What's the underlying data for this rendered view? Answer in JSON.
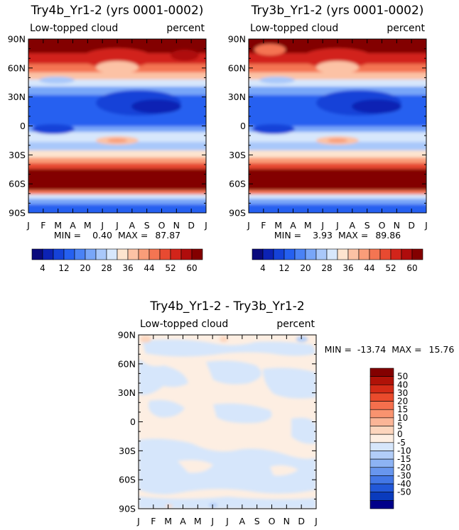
{
  "chart_data": [
    {
      "type": "heatmap",
      "title": "Try4b_Yr1-2 (yrs 0001-0002)",
      "left_label": "Low-topped cloud",
      "right_label": "percent",
      "x_ticks": [
        "J",
        "F",
        "M",
        "A",
        "M",
        "J",
        "J",
        "A",
        "S",
        "O",
        "N",
        "D",
        "J"
      ],
      "y_ticks": [
        "90N",
        "60N",
        "30N",
        "0",
        "30S",
        "60S",
        "90S"
      ],
      "stats": {
        "min_label": "MIN =",
        "min": "0.40",
        "max_label": "MAX =",
        "max": "87.87"
      },
      "colorbar": {
        "labels": [
          "4",
          "12",
          "20",
          "28",
          "36",
          "44",
          "52",
          "60"
        ],
        "colors": [
          "#0a0a7d",
          "#0c22b4",
          "#1542d8",
          "#2560f0",
          "#4a82f5",
          "#78a6f8",
          "#a9c8fa",
          "#d7e7fc",
          "#fde4cf",
          "#fcc2a5",
          "#f99d79",
          "#f47552",
          "#e84a31",
          "#d2241a",
          "#af0c0c",
          "#830000"
        ]
      }
    },
    {
      "type": "heatmap",
      "title": "Try3b_Yr1-2 (yrs 0001-0002)",
      "left_label": "Low-topped cloud",
      "right_label": "percent",
      "x_ticks": [
        "J",
        "F",
        "M",
        "A",
        "M",
        "J",
        "J",
        "A",
        "S",
        "O",
        "N",
        "D",
        "J"
      ],
      "y_ticks": [
        "90N",
        "60N",
        "30N",
        "0",
        "30S",
        "60S",
        "90S"
      ],
      "stats": {
        "min_label": "MIN =",
        "min": "3.93",
        "max_label": "MAX =",
        "max": "89.86"
      },
      "colorbar": {
        "labels": [
          "4",
          "12",
          "20",
          "28",
          "36",
          "44",
          "52",
          "60"
        ],
        "colors": [
          "#0a0a7d",
          "#0c22b4",
          "#1542d8",
          "#2560f0",
          "#4a82f5",
          "#78a6f8",
          "#a9c8fa",
          "#d7e7fc",
          "#fde4cf",
          "#fcc2a5",
          "#f99d79",
          "#f47552",
          "#e84a31",
          "#d2241a",
          "#af0c0c",
          "#830000"
        ]
      }
    },
    {
      "type": "heatmap",
      "title": "Try4b_Yr1-2 - Try3b_Yr1-2",
      "left_label": "Low-topped cloud",
      "right_label": "percent",
      "x_ticks": [
        "J",
        "F",
        "M",
        "A",
        "M",
        "J",
        "J",
        "A",
        "S",
        "O",
        "N",
        "D",
        "J"
      ],
      "y_ticks": [
        "90N",
        "60N",
        "30N",
        "0",
        "30S",
        "60S",
        "90S"
      ],
      "stats": {
        "min_label": "MIN =",
        "min": "-13.74",
        "max_label": "MAX =",
        "max": "15.76"
      },
      "colorbar": {
        "labels": [
          "50",
          "40",
          "30",
          "20",
          "15",
          "10",
          "5",
          "0",
          "-5",
          "-10",
          "-15",
          "-20",
          "-30",
          "-40",
          "-50"
        ],
        "colors": [
          "#830000",
          "#b01208",
          "#d42b17",
          "#ea4b2c",
          "#f56f4d",
          "#f9936f",
          "#fbb597",
          "#fcd5bd",
          "#fdeee2",
          "#d6e6fb",
          "#b2cdf8",
          "#8db3f4",
          "#6896ee",
          "#4377e6",
          "#2258d8",
          "#0a3bbd",
          "#00008a"
        ]
      }
    }
  ]
}
